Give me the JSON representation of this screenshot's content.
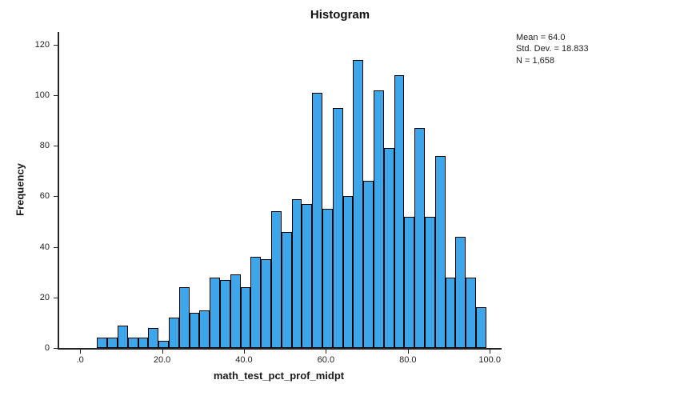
{
  "title": "Histogram",
  "stats": {
    "mean": "Mean = 64.0",
    "std": "Std. Dev. = 18.833",
    "n": "N = 1,658"
  },
  "ylabel": "Frequency",
  "xlabel": "math_test_pct_prof_midpt",
  "chart_data": {
    "type": "bar",
    "title": "Histogram",
    "xlabel": "math_test_pct_prof_midpt",
    "ylabel": "Frequency",
    "legend": "none",
    "grid": false,
    "bin_width": 2.5,
    "midpoints": [
      5,
      7.5,
      10,
      12.5,
      15,
      17.5,
      20,
      22.5,
      25,
      27.5,
      30,
      32.5,
      35,
      37.5,
      40,
      42.5,
      45,
      47.5,
      50,
      52.5,
      55,
      57.5,
      60,
      62.5,
      65,
      67.5,
      70,
      72.5,
      75,
      77.5,
      80,
      82.5,
      85,
      87.5,
      90,
      92.5,
      95,
      97.5
    ],
    "values": [
      4,
      4,
      9,
      4,
      4,
      8,
      3,
      12,
      24,
      14,
      15,
      28,
      27,
      29,
      24,
      36,
      35,
      54,
      46,
      59,
      57,
      101,
      55,
      95,
      60,
      114,
      66,
      102,
      79,
      108,
      52,
      87,
      52,
      76,
      28,
      44,
      28,
      16
    ],
    "x_tick_labels": [
      ".0",
      "20.0",
      "40.0",
      "60.0",
      "80.0",
      "100.0"
    ],
    "x_tick_values": [
      0,
      20,
      40,
      60,
      80,
      100
    ],
    "y_tick_values": [
      0,
      20,
      40,
      60,
      80,
      100,
      120
    ],
    "xlim": [
      -5.5,
      102.5
    ],
    "ylim": [
      0,
      125
    ],
    "bar_color": "#3da6e9",
    "bar_border": "#000000",
    "axis_color": "#262626",
    "stats_annotation": [
      "Mean = 64.0",
      "Std. Dev. = 18.833",
      "N = 1,658"
    ]
  }
}
